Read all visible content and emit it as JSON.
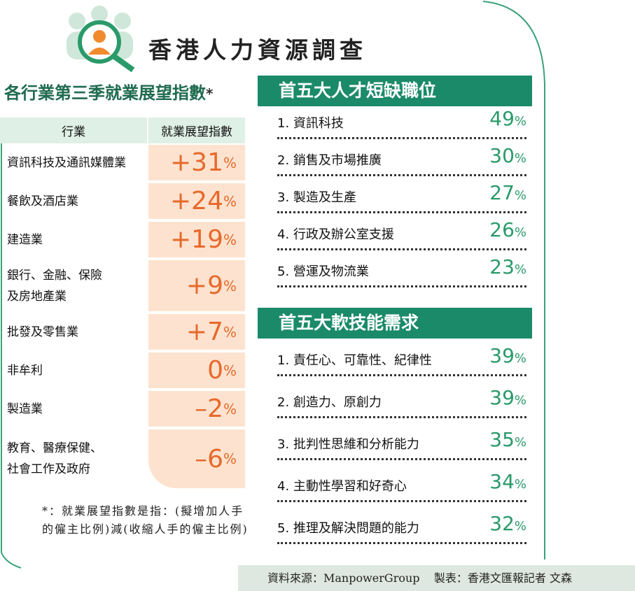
{
  "header": {
    "title": "香港人力資源調查"
  },
  "outlook": {
    "title": "各行業第三季就業展望指數",
    "title_mark": "*",
    "columns": [
      "行業",
      "就業展望指數"
    ],
    "rows": [
      {
        "industry": "資訊科技及通訊媒體業",
        "index": "+31",
        "unit": "%"
      },
      {
        "industry": "餐飲及酒店業",
        "index": "+24",
        "unit": "%"
      },
      {
        "industry": "建造業",
        "index": "+19",
        "unit": "%"
      },
      {
        "industry": "銀行、金融、保險\n及房地產業",
        "index": "+9",
        "unit": "%"
      },
      {
        "industry": "批發及零售業",
        "index": "+7",
        "unit": "%"
      },
      {
        "industry": "非牟利",
        "index": "0",
        "unit": "%"
      },
      {
        "industry": "製造業",
        "index": "–2",
        "unit": "%"
      },
      {
        "industry": "教育、醫療保健、\n社會工作及政府",
        "index": "–6",
        "unit": "%"
      }
    ],
    "footnote": "*：就業展望指數是指：(擬增加人手的僱主比例)減(收縮人手的僱主比例)"
  },
  "shortage": {
    "title": "首五大人才短缺職位",
    "items": [
      {
        "label": "1. 資訊科技",
        "value": "49",
        "unit": "%"
      },
      {
        "label": "2. 銷售及市場推廣",
        "value": "30",
        "unit": "%"
      },
      {
        "label": "3. 製造及生產",
        "value": "27",
        "unit": "%"
      },
      {
        "label": "4. 行政及辦公室支援",
        "value": "26",
        "unit": "%"
      },
      {
        "label": "5. 營運及物流業",
        "value": "23",
        "unit": "%"
      }
    ]
  },
  "soft_skills": {
    "title": "首五大軟技能需求",
    "items": [
      {
        "label": "1. 責任心、可靠性、紀律性",
        "value": "39",
        "unit": "%"
      },
      {
        "label": "2. 創造力、原創力",
        "value": "39",
        "unit": "%"
      },
      {
        "label": "3. 批判性思維和分析能力",
        "value": "35",
        "unit": "%"
      },
      {
        "label": "4. 主動性學習和好奇心",
        "value": "34",
        "unit": "%"
      },
      {
        "label": "5. 推理及解決問題的能力",
        "value": "32",
        "unit": "%"
      }
    ]
  },
  "footer": {
    "source": "資料來源：ManpowerGroup",
    "credit": "製表：香港文匯報記者 文森"
  }
}
